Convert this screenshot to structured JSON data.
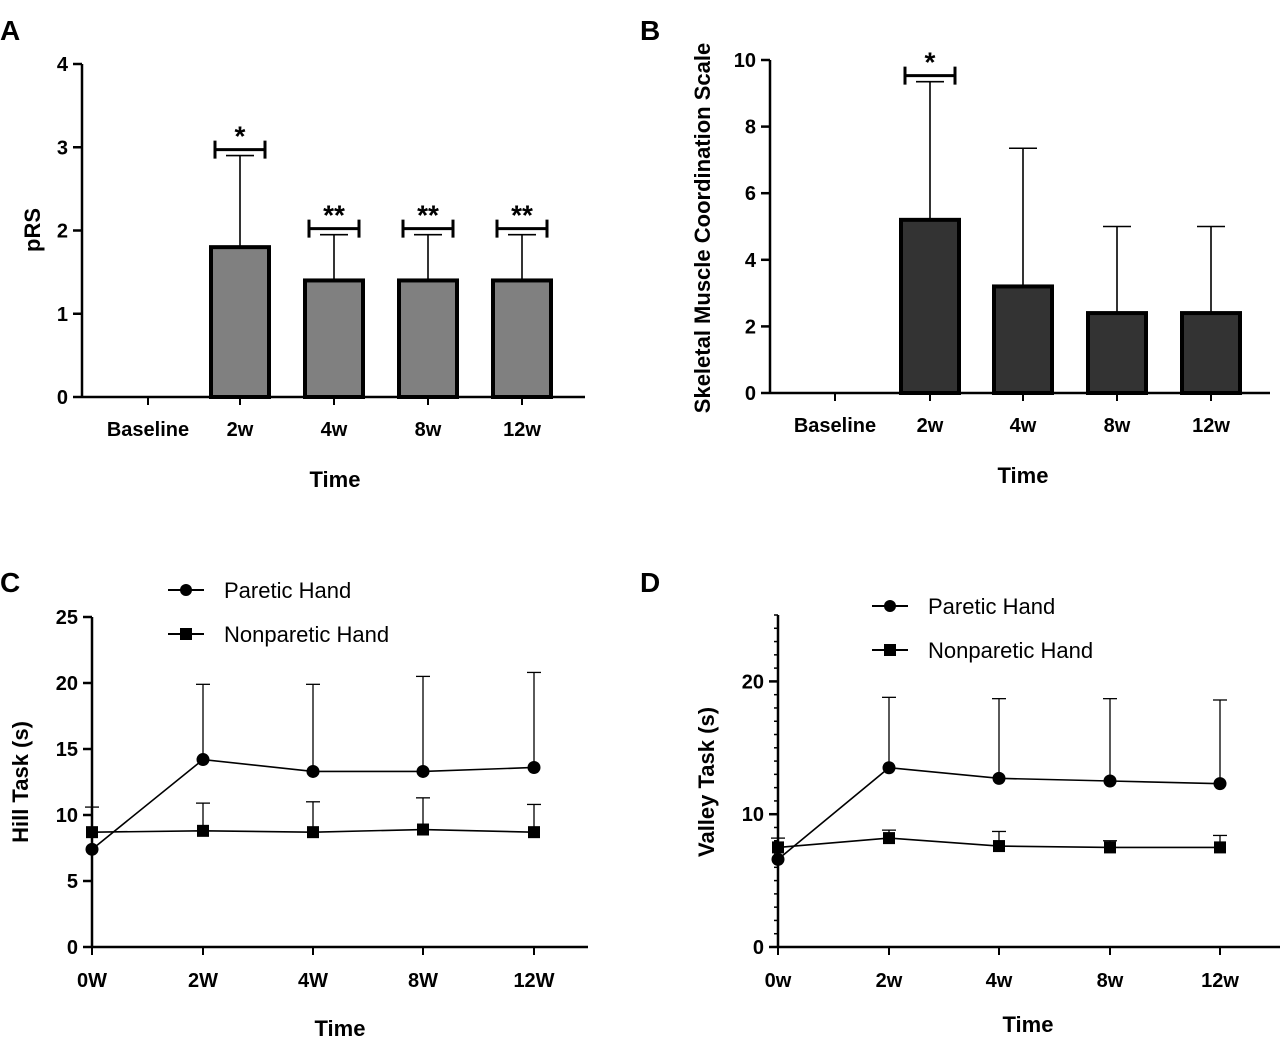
{
  "colors": {
    "bar_a": "#808080",
    "bar_b": "#333333",
    "line": "#000000",
    "background": "#ffffff"
  },
  "chart_data": [
    {
      "panel": "A",
      "type": "bar",
      "categories": [
        "Baseline",
        "2w",
        "4w",
        "8w",
        "12w"
      ],
      "values": [
        0,
        1.8,
        1.4,
        1.4,
        1.4
      ],
      "errors": [
        0,
        1.1,
        0.55,
        0.55,
        0.55
      ],
      "ylim": [
        0,
        4
      ],
      "yticks": [
        "0",
        "1",
        "2",
        "3",
        "4"
      ],
      "ylabel": "pRS",
      "xlabel": "Time",
      "significance": [
        "",
        "*",
        "**",
        "**",
        "**"
      ]
    },
    {
      "panel": "B",
      "type": "bar",
      "categories": [
        "Baseline",
        "2w",
        "4w",
        "8w",
        "12w"
      ],
      "values": [
        0,
        5.2,
        3.2,
        2.4,
        2.4
      ],
      "errors": [
        0,
        4.15,
        4.15,
        2.6,
        2.6
      ],
      "ylim": [
        0,
        10
      ],
      "yticks": [
        "0",
        "2",
        "4",
        "6",
        "8",
        "10"
      ],
      "ylabel": "Skeletal Muscle Coordination Scale",
      "xlabel": "Time",
      "significance": [
        "",
        "*",
        "",
        "",
        ""
      ]
    },
    {
      "panel": "C",
      "type": "line",
      "x": [
        "0W",
        "2W",
        "4W",
        "8W",
        "12W"
      ],
      "series": [
        {
          "name": "Paretic Hand",
          "marker": "circle",
          "values": [
            7.4,
            14.2,
            13.3,
            13.3,
            13.6
          ],
          "errors": [
            0,
            5.7,
            6.6,
            7.2,
            7.2
          ]
        },
        {
          "name": "Nonparetic Hand",
          "marker": "square",
          "values": [
            8.7,
            8.8,
            8.7,
            8.9,
            8.7
          ],
          "errors": [
            1.9,
            2.1,
            2.3,
            2.4,
            2.1
          ]
        }
      ],
      "ylim": [
        0,
        25
      ],
      "yticks": [
        "0",
        "5",
        "10",
        "15",
        "20",
        "25"
      ],
      "ylabel": "Hill Task (s)",
      "xlabel": "Time"
    },
    {
      "panel": "D",
      "type": "line",
      "x": [
        "0w",
        "2w",
        "4w",
        "8w",
        "12w"
      ],
      "series": [
        {
          "name": "Paretic Hand",
          "marker": "circle",
          "values": [
            6.6,
            13.5,
            12.7,
            12.5,
            12.3
          ],
          "errors": [
            0,
            5.3,
            6.0,
            6.2,
            6.3
          ]
        },
        {
          "name": "Nonparetic Hand",
          "marker": "square",
          "values": [
            7.5,
            8.2,
            7.6,
            7.5,
            7.5
          ],
          "errors": [
            0.7,
            0.6,
            1.1,
            0.5,
            0.9
          ]
        }
      ],
      "ylim": [
        0,
        25
      ],
      "yticks": [
        "0",
        "10",
        "20"
      ],
      "ylabel": "Valley Task (s)",
      "xlabel": "Time"
    }
  ]
}
